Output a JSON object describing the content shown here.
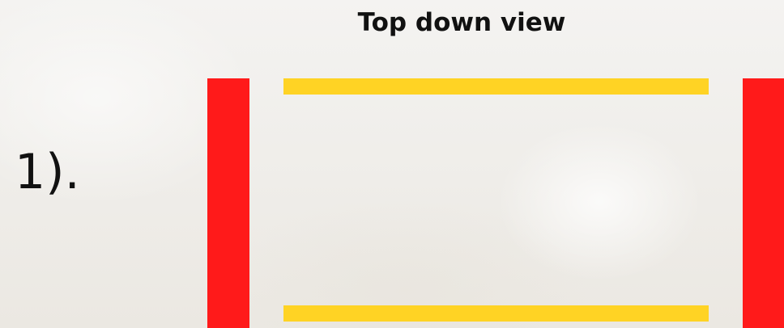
{
  "heading": "Top down view",
  "step_label": "1).",
  "colors": {
    "post": "#ff1a1a",
    "rail": "#ffd324",
    "text": "#111111"
  }
}
